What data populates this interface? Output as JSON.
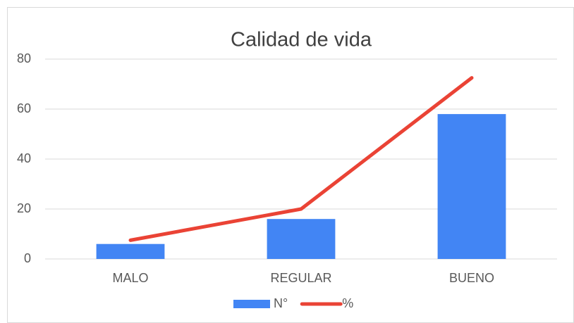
{
  "chart_data": {
    "type": "bar",
    "title": "Calidad de vida",
    "categories": [
      "MALO",
      "REGULAR",
      "BUENO"
    ],
    "series": [
      {
        "name": "N°",
        "type": "bar",
        "color": "#4285f4",
        "values": [
          6,
          16,
          58
        ]
      },
      {
        "name": "%",
        "type": "line",
        "color": "#ea4335",
        "values": [
          7.5,
          20,
          72.5
        ]
      }
    ],
    "ylim": [
      0,
      80
    ],
    "yticks": [
      0,
      20,
      40,
      60,
      80
    ],
    "grid": true,
    "legend": "bottom"
  }
}
